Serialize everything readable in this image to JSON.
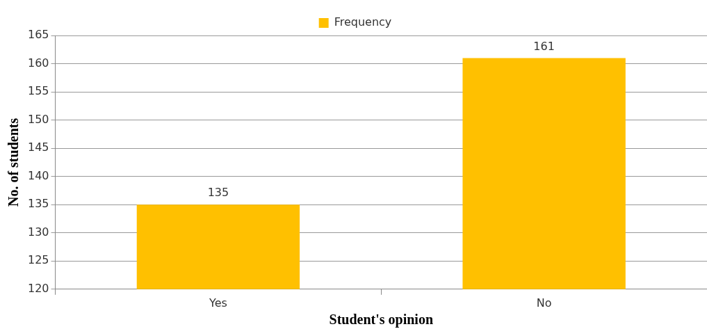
{
  "chart_data": {
    "type": "bar",
    "xlabel": "Student's opinion",
    "ylabel": "No. of students",
    "categories": [
      "Yes",
      "No"
    ],
    "series": [
      {
        "name": "Frequency",
        "color": "#ffc000",
        "values": [
          135,
          161
        ]
      }
    ],
    "ylim": [
      120,
      165
    ],
    "yticks": [
      120,
      125,
      130,
      135,
      140,
      145,
      150,
      155,
      160,
      165
    ],
    "grid": "y",
    "legend": "top",
    "data_labels": true
  }
}
